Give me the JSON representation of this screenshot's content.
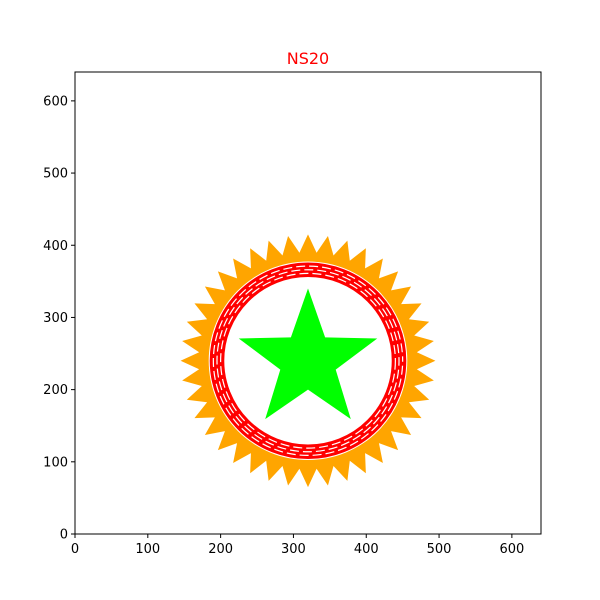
{
  "chart_data": {
    "type": "scatter",
    "title": "NS20",
    "title_color": "#ff0000",
    "xlabel": "",
    "ylabel": "",
    "xlim": [
      0,
      640
    ],
    "ylim": [
      0,
      640
    ],
    "x_ticks": [
      0,
      100,
      200,
      300,
      400,
      500,
      600
    ],
    "y_ticks": [
      0,
      100,
      200,
      300,
      400,
      500,
      600
    ],
    "x_tick_labels": [
      "0",
      "100",
      "200",
      "300",
      "400",
      "500",
      "600"
    ],
    "y_tick_labels": [
      "0",
      "100",
      "200",
      "300",
      "400",
      "500",
      "600"
    ],
    "grid": false,
    "shapes": {
      "starburst": {
        "center": [
          320,
          240
        ],
        "outer_radius": 175,
        "inner_radius": 150,
        "points": 40,
        "color": "#ffa500"
      },
      "rings": {
        "center": [
          320,
          240
        ],
        "outer_radius": 135,
        "inner_radius": 115,
        "color": "#ff0000",
        "dash_color": "#ffffff",
        "dashed_circle_radii": [
          120,
          125,
          130
        ]
      },
      "star": {
        "center": [
          320,
          240
        ],
        "outer_radius": 100,
        "inner_radius": 40,
        "points": 5,
        "color": "#00ff00"
      }
    }
  }
}
